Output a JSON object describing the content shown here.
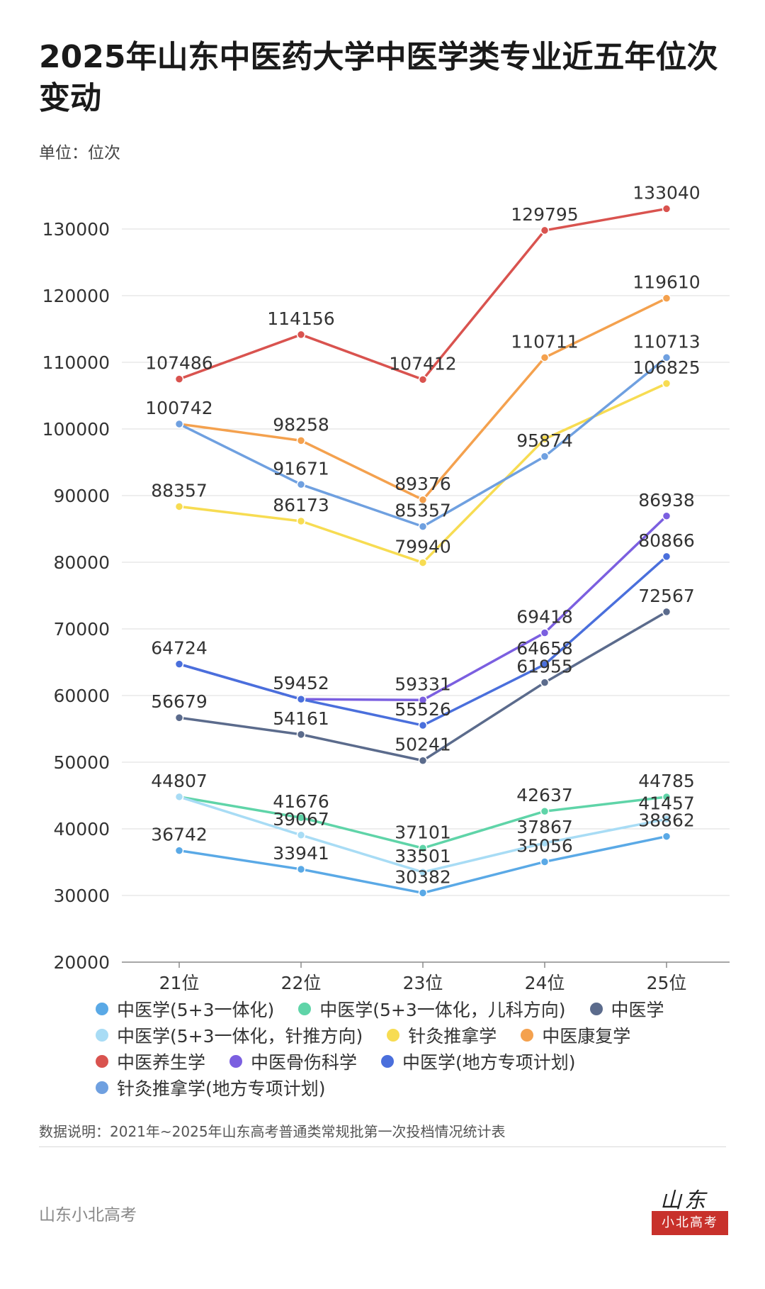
{
  "title": "2025年山东中医药大学中医学类专业近五年位次变动",
  "unit_label": "单位：位次",
  "note": "数据说明：2021年~2025年山东高考普通类常规批第一次投档情况统计表",
  "source": "山东小北高考",
  "brand": {
    "script": "山东",
    "box": "小北高考"
  },
  "chart_data": {
    "type": "line",
    "categories": [
      "21位",
      "22位",
      "23位",
      "24位",
      "25位"
    ],
    "ylim": [
      20000,
      130000
    ],
    "yticks": [
      20000,
      30000,
      40000,
      50000,
      60000,
      70000,
      80000,
      90000,
      100000,
      110000,
      120000,
      130000
    ],
    "grid": true,
    "legend_position": "bottom",
    "series": [
      {
        "name": "中医学(5+3一体化)",
        "color": "#5aa9e6",
        "values": [
          36742,
          33941,
          30382,
          35056,
          38862
        ]
      },
      {
        "name": "中医学(5+3一体化，儿科方向)",
        "color": "#5fd4a8",
        "values": [
          44807,
          41676,
          37101,
          42637,
          44785
        ]
      },
      {
        "name": "中医学",
        "color": "#5b6b8c",
        "values": [
          56679,
          54161,
          50241,
          61955,
          72567
        ]
      },
      {
        "name": "中医学(5+3一体化，针推方向)",
        "color": "#a8dcf5",
        "values": [
          44807,
          39067,
          33501,
          37867,
          41457
        ]
      },
      {
        "name": "针灸推拿学",
        "color": "#f7dc52",
        "values": [
          88357,
          86173,
          79940,
          98500,
          106825
        ]
      },
      {
        "name": "中医康复学",
        "color": "#f4a14e",
        "values": [
          100742,
          98258,
          89376,
          110711,
          119610
        ]
      },
      {
        "name": "中医养生学",
        "color": "#d9534f",
        "values": [
          107486,
          114156,
          107412,
          129795,
          133040
        ]
      },
      {
        "name": "中医骨伤科学",
        "color": "#7b5fe0",
        "values": [
          64724,
          59452,
          59331,
          69418,
          86938
        ]
      },
      {
        "name": "中医学(地方专项计划)",
        "color": "#4a6fdc",
        "values": [
          64724,
          59452,
          55526,
          64658,
          80866
        ]
      },
      {
        "name": "针灸推拿学(地方专项计划)",
        "color": "#6fa0e0",
        "values": [
          100742,
          91671,
          85357,
          95874,
          110713
        ]
      }
    ],
    "data_labels": [
      {
        "series": 6,
        "i": 0,
        "text": "107486"
      },
      {
        "series": 6,
        "i": 1,
        "text": "114156"
      },
      {
        "series": 6,
        "i": 2,
        "text": "107412"
      },
      {
        "series": 6,
        "i": 3,
        "text": "129795"
      },
      {
        "series": 6,
        "i": 4,
        "text": "133040"
      },
      {
        "series": 5,
        "i": 0,
        "text": "100742"
      },
      {
        "series": 5,
        "i": 1,
        "text": "98258"
      },
      {
        "series": 5,
        "i": 2,
        "text": "89376"
      },
      {
        "series": 5,
        "i": 3,
        "text": "110711"
      },
      {
        "series": 5,
        "i": 4,
        "text": "119610"
      },
      {
        "series": 9,
        "i": 1,
        "text": "91671"
      },
      {
        "series": 9,
        "i": 2,
        "text": "85357"
      },
      {
        "series": 9,
        "i": 3,
        "text": "95874"
      },
      {
        "series": 9,
        "i": 4,
        "text": "110713"
      },
      {
        "series": 4,
        "i": 0,
        "text": "88357"
      },
      {
        "series": 4,
        "i": 1,
        "text": "86173"
      },
      {
        "series": 4,
        "i": 2,
        "text": "79940"
      },
      {
        "series": 4,
        "i": 4,
        "text": "106825"
      },
      {
        "series": 7,
        "i": 0,
        "text": "64724"
      },
      {
        "series": 7,
        "i": 1,
        "text": "59452"
      },
      {
        "series": 7,
        "i": 2,
        "text": "59331"
      },
      {
        "series": 7,
        "i": 3,
        "text": "69418"
      },
      {
        "series": 7,
        "i": 4,
        "text": "86938"
      },
      {
        "series": 8,
        "i": 2,
        "text": "55526"
      },
      {
        "series": 8,
        "i": 3,
        "text": "64658"
      },
      {
        "series": 8,
        "i": 4,
        "text": "80866"
      },
      {
        "series": 2,
        "i": 0,
        "text": "56679"
      },
      {
        "series": 2,
        "i": 1,
        "text": "54161"
      },
      {
        "series": 2,
        "i": 2,
        "text": "50241"
      },
      {
        "series": 2,
        "i": 3,
        "text": "61955"
      },
      {
        "series": 2,
        "i": 4,
        "text": "72567"
      },
      {
        "series": 1,
        "i": 0,
        "text": "44807"
      },
      {
        "series": 1,
        "i": 1,
        "text": "41676"
      },
      {
        "series": 1,
        "i": 2,
        "text": "37101"
      },
      {
        "series": 1,
        "i": 3,
        "text": "42637"
      },
      {
        "series": 1,
        "i": 4,
        "text": "44785"
      },
      {
        "series": 3,
        "i": 1,
        "text": "39067"
      },
      {
        "series": 3,
        "i": 2,
        "text": "33501"
      },
      {
        "series": 3,
        "i": 3,
        "text": "37867"
      },
      {
        "series": 3,
        "i": 4,
        "text": "41457"
      },
      {
        "series": 0,
        "i": 0,
        "text": "36742"
      },
      {
        "series": 0,
        "i": 1,
        "text": "33941"
      },
      {
        "series": 0,
        "i": 2,
        "text": "30382"
      },
      {
        "series": 0,
        "i": 3,
        "text": "35056"
      },
      {
        "series": 0,
        "i": 4,
        "text": "38862"
      }
    ]
  }
}
